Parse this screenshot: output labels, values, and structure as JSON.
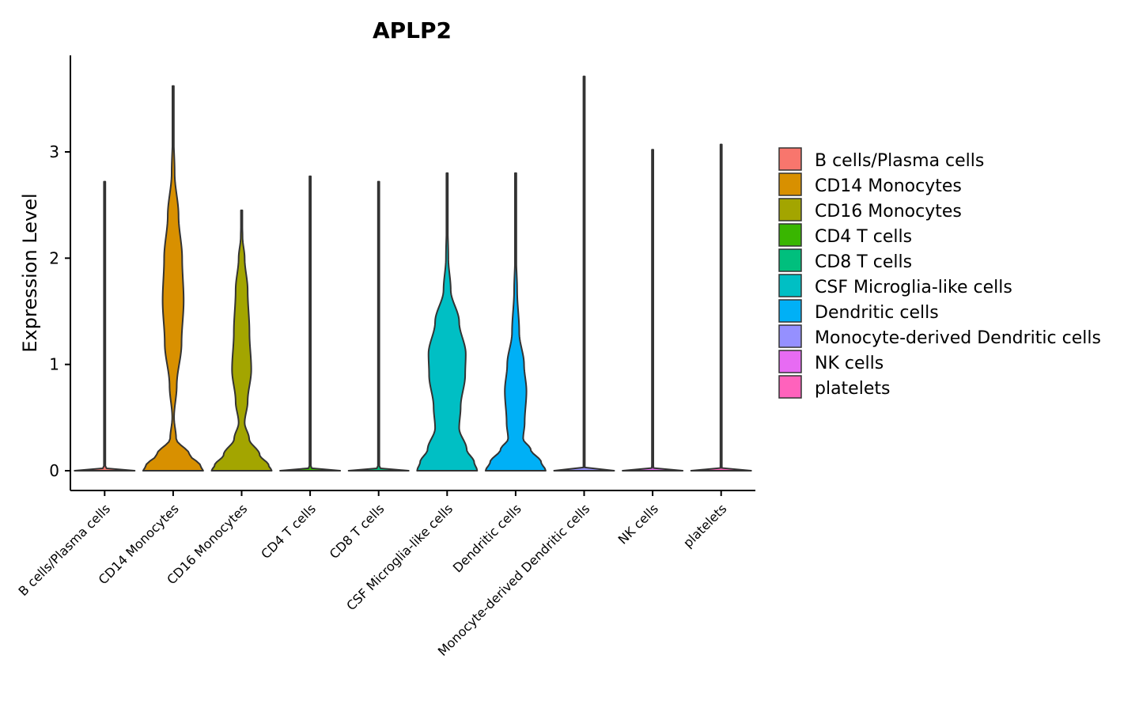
{
  "chart_data": {
    "type": "violin",
    "title": "APLP2",
    "xlabel": "",
    "ylabel": "Expression Level",
    "ylim": [
      -0.18,
      3.92
    ],
    "yticks": [
      0,
      1,
      2,
      3
    ],
    "grid": false,
    "legend_position": "right",
    "categories": [
      "B cells/Plasma cells",
      "CD14 Monocytes",
      "CD16 Monocytes",
      "CD4 T cells",
      "CD8 T cells",
      "CSF Microglia-like cells",
      "Dendritic cells",
      "Monocyte-derived Dendritic cells",
      "NK cells",
      "platelets"
    ],
    "colors": [
      "#F8766D",
      "#D89000",
      "#A3A500",
      "#39B600",
      "#00BF7D",
      "#00BFC4",
      "#00B0F6",
      "#9590FF",
      "#E76BF3",
      "#FF62BC"
    ],
    "series": [
      {
        "name": "B cells/Plasma cells",
        "max": 2.72,
        "profile": [
          [
            0,
            1.0
          ],
          [
            0.01,
            0.2
          ],
          [
            0.03,
            0.0
          ]
        ]
      },
      {
        "name": "CD14 Monocytes",
        "max": 3.62,
        "profile": [
          [
            0,
            1.0
          ],
          [
            0.05,
            0.9
          ],
          [
            0.15,
            0.55
          ],
          [
            0.3,
            0.1
          ],
          [
            0.5,
            0.03
          ],
          [
            0.8,
            0.12
          ],
          [
            1.2,
            0.28
          ],
          [
            1.6,
            0.35
          ],
          [
            2.0,
            0.3
          ],
          [
            2.4,
            0.18
          ],
          [
            2.8,
            0.05
          ],
          [
            3.2,
            0.01
          ],
          [
            3.62,
            0.0
          ]
        ]
      },
      {
        "name": "CD16 Monocytes",
        "max": 2.45,
        "profile": [
          [
            0,
            1.0
          ],
          [
            0.05,
            0.9
          ],
          [
            0.15,
            0.6
          ],
          [
            0.3,
            0.25
          ],
          [
            0.45,
            0.1
          ],
          [
            0.65,
            0.2
          ],
          [
            0.95,
            0.32
          ],
          [
            1.3,
            0.26
          ],
          [
            1.7,
            0.2
          ],
          [
            2.0,
            0.1
          ],
          [
            2.2,
            0.03
          ],
          [
            2.45,
            0.0
          ]
        ]
      },
      {
        "name": "CD4 T cells",
        "max": 2.77,
        "profile": [
          [
            0,
            1.0
          ],
          [
            0.01,
            0.2
          ],
          [
            0.03,
            0.0
          ]
        ]
      },
      {
        "name": "CD8 T cells",
        "max": 2.72,
        "profile": [
          [
            0,
            1.0
          ],
          [
            0.01,
            0.2
          ],
          [
            0.03,
            0.0
          ]
        ]
      },
      {
        "name": "CSF Microglia-like cells",
        "max": 2.8,
        "profile": [
          [
            0,
            1.0
          ],
          [
            0.08,
            0.9
          ],
          [
            0.2,
            0.65
          ],
          [
            0.4,
            0.4
          ],
          [
            0.6,
            0.45
          ],
          [
            0.9,
            0.6
          ],
          [
            1.1,
            0.62
          ],
          [
            1.4,
            0.4
          ],
          [
            1.7,
            0.12
          ],
          [
            2.0,
            0.04
          ],
          [
            2.4,
            0.01
          ],
          [
            2.8,
            0.0
          ]
        ]
      },
      {
        "name": "Dendritic cells",
        "max": 2.8,
        "profile": [
          [
            0,
            1.0
          ],
          [
            0.08,
            0.85
          ],
          [
            0.2,
            0.5
          ],
          [
            0.3,
            0.25
          ],
          [
            0.45,
            0.3
          ],
          [
            0.75,
            0.36
          ],
          [
            1.0,
            0.28
          ],
          [
            1.3,
            0.12
          ],
          [
            1.7,
            0.05
          ],
          [
            2.0,
            0.02
          ],
          [
            2.4,
            0.0
          ],
          [
            2.8,
            0.0
          ]
        ]
      },
      {
        "name": "Monocyte-derived Dendritic cells",
        "max": 3.71,
        "profile": [
          [
            0,
            1.0
          ],
          [
            0.01,
            0.2
          ],
          [
            0.03,
            0.0
          ]
        ]
      },
      {
        "name": "NK cells",
        "max": 3.02,
        "profile": [
          [
            0,
            1.0
          ],
          [
            0.01,
            0.2
          ],
          [
            0.03,
            0.0
          ]
        ]
      },
      {
        "name": "platelets",
        "max": 3.07,
        "profile": [
          [
            0,
            1.0
          ],
          [
            0.01,
            0.2
          ],
          [
            0.03,
            0.0
          ]
        ]
      }
    ]
  }
}
